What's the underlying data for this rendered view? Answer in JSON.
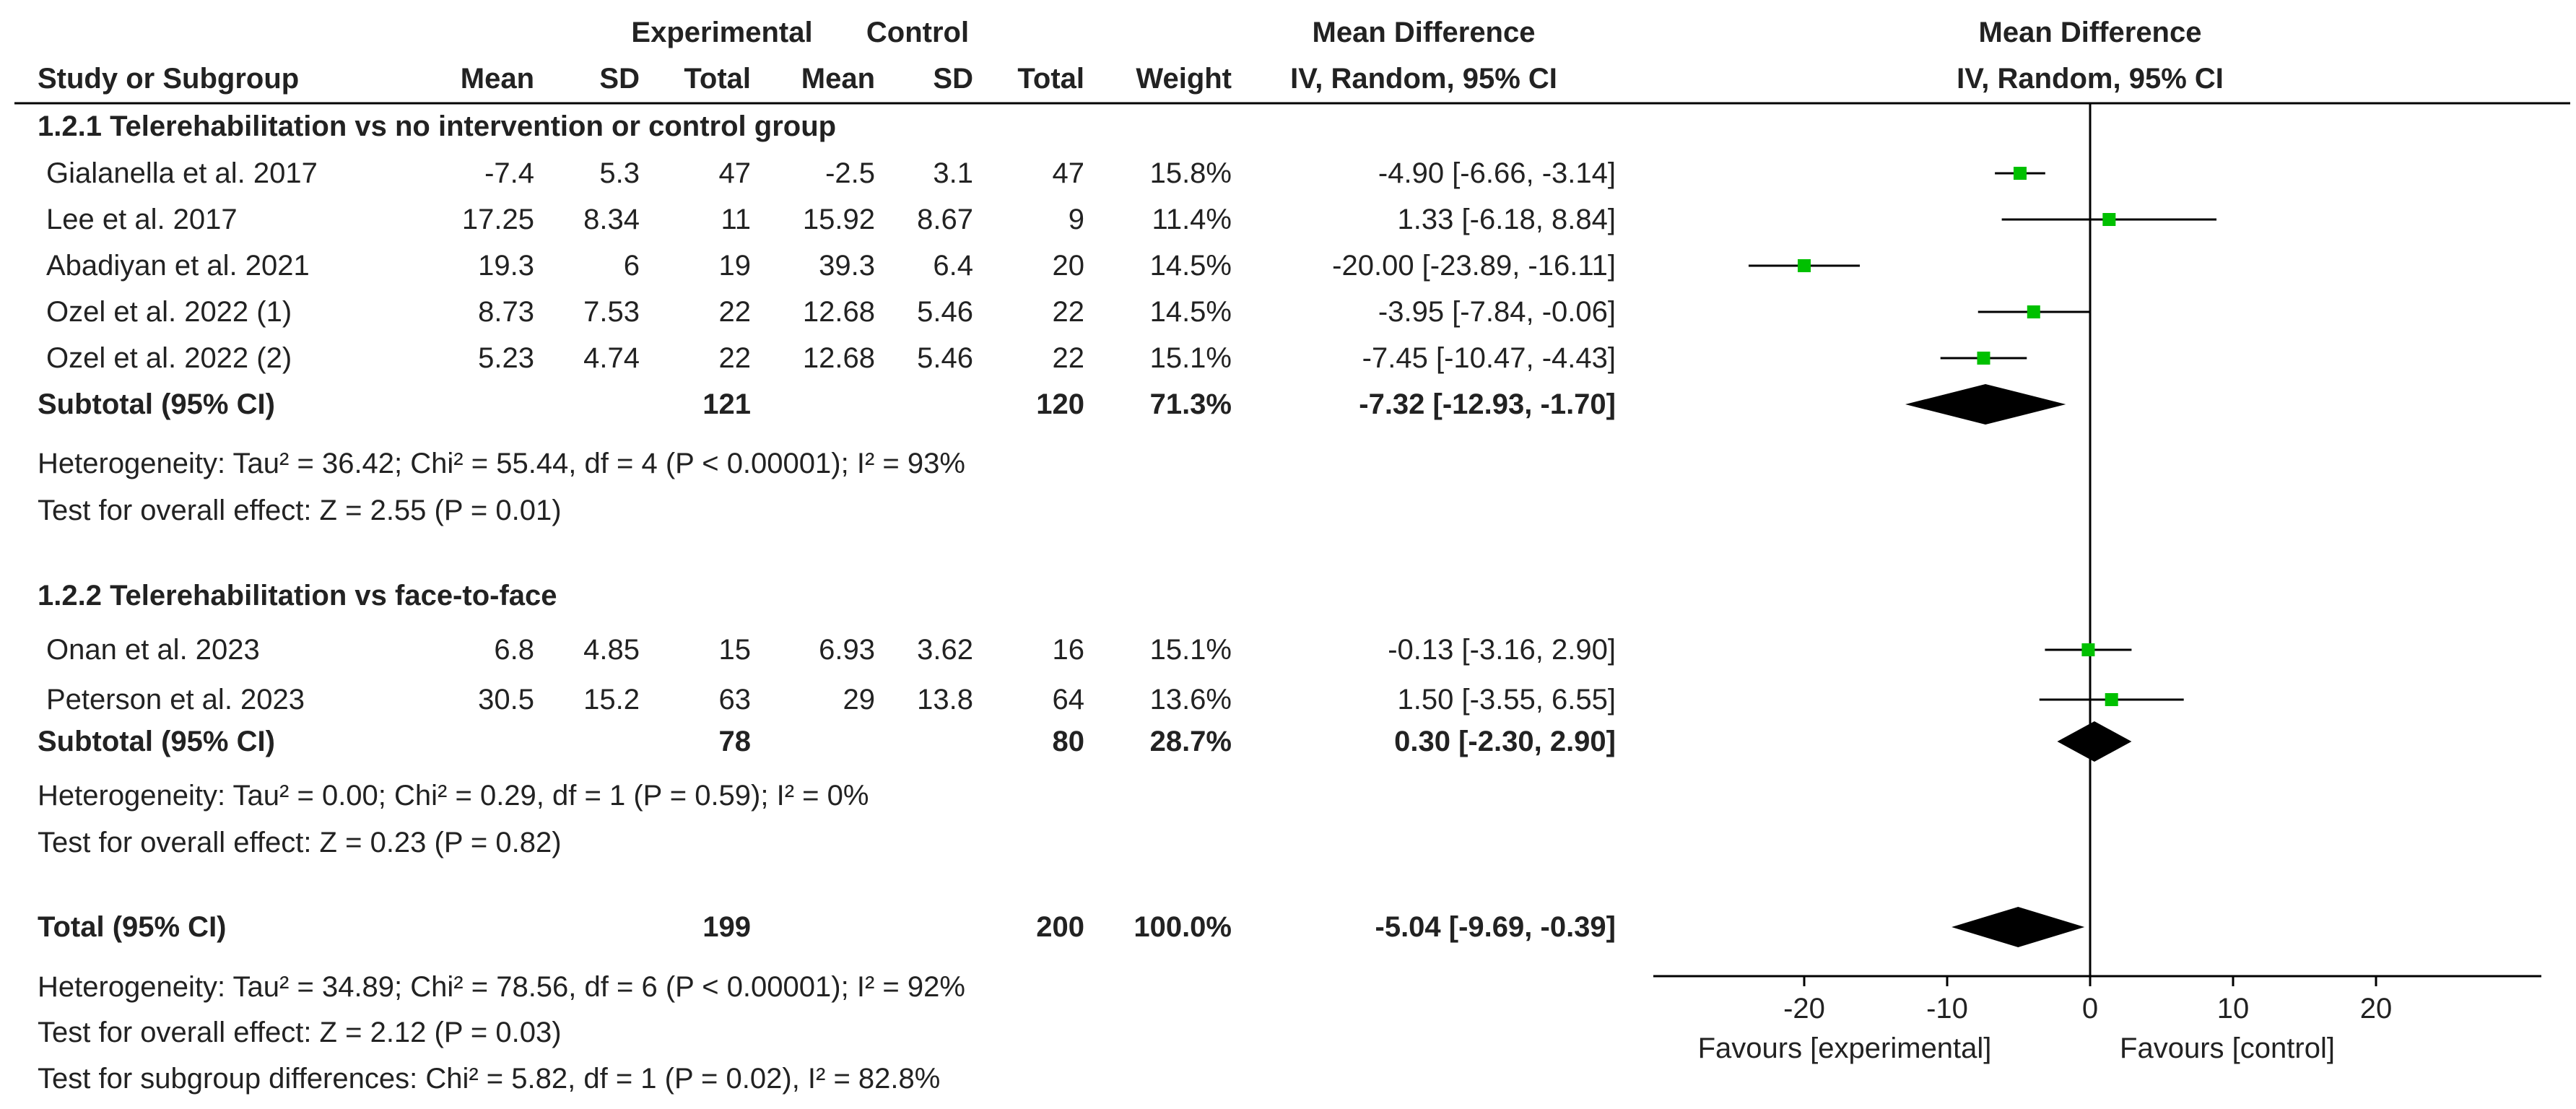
{
  "header": {
    "experimental": "Experimental",
    "control": "Control",
    "md_top": "Mean Difference",
    "md_sub": "IV, Random, 95% CI",
    "plot_top": "Mean Difference",
    "plot_sub": "IV, Random, 95% CI",
    "study": "Study or Subgroup",
    "mean": "Mean",
    "sd": "SD",
    "total": "Total",
    "weight": "Weight"
  },
  "subgroups": [
    {
      "title": "1.2.1 Telerehabilitation vs no intervention or control group",
      "studies": [
        {
          "name": "Gialanella et al. 2017",
          "e_mean": "-7.4",
          "e_sd": "5.3",
          "e_total": "47",
          "c_mean": "-2.5",
          "c_sd": "3.1",
          "c_total": "47",
          "weight": "15.8%",
          "ci_text": "-4.90 [-6.66, -3.14]",
          "md": -4.9,
          "lo": -6.66,
          "hi": -3.14
        },
        {
          "name": "Lee et al. 2017",
          "e_mean": "17.25",
          "e_sd": "8.34",
          "e_total": "11",
          "c_mean": "15.92",
          "c_sd": "8.67",
          "c_total": "9",
          "weight": "11.4%",
          "ci_text": "1.33 [-6.18, 8.84]",
          "md": 1.33,
          "lo": -6.18,
          "hi": 8.84
        },
        {
          "name": "Abadiyan et al. 2021",
          "e_mean": "19.3",
          "e_sd": "6",
          "e_total": "19",
          "c_mean": "39.3",
          "c_sd": "6.4",
          "c_total": "20",
          "weight": "14.5%",
          "ci_text": "-20.00 [-23.89, -16.11]",
          "md": -20.0,
          "lo": -23.89,
          "hi": -16.11
        },
        {
          "name": "Ozel et al. 2022 (1)",
          "e_mean": "8.73",
          "e_sd": "7.53",
          "e_total": "22",
          "c_mean": "12.68",
          "c_sd": "5.46",
          "c_total": "22",
          "weight": "14.5%",
          "ci_text": "-3.95 [-7.84, -0.06]",
          "md": -3.95,
          "lo": -7.84,
          "hi": -0.06
        },
        {
          "name": "Ozel et al. 2022 (2)",
          "e_mean": "5.23",
          "e_sd": "4.74",
          "e_total": "22",
          "c_mean": "12.68",
          "c_sd": "5.46",
          "c_total": "22",
          "weight": "15.1%",
          "ci_text": "-7.45 [-10.47, -4.43]",
          "md": -7.45,
          "lo": -10.47,
          "hi": -4.43
        }
      ],
      "subtotal": {
        "label": "Subtotal (95% CI)",
        "e_total": "121",
        "c_total": "120",
        "weight": "71.3%",
        "ci_text": "-7.32 [-12.93, -1.70]",
        "md": -7.32,
        "lo": -12.93,
        "hi": -1.7
      },
      "heterogeneity": "Heterogeneity: Tau² = 36.42; Chi² = 55.44, df = 4 (P < 0.00001); I² = 93%",
      "overall": "Test for overall effect: Z = 2.55 (P = 0.01)"
    },
    {
      "title": "1.2.2 Telerehabilitation vs face-to-face",
      "studies": [
        {
          "name": "Onan et al. 2023",
          "e_mean": "6.8",
          "e_sd": "4.85",
          "e_total": "15",
          "c_mean": "6.93",
          "c_sd": "3.62",
          "c_total": "16",
          "weight": "15.1%",
          "ci_text": "-0.13 [-3.16, 2.90]",
          "md": -0.13,
          "lo": -3.16,
          "hi": 2.9
        },
        {
          "name": "Peterson et al. 2023",
          "e_mean": "30.5",
          "e_sd": "15.2",
          "e_total": "63",
          "c_mean": "29",
          "c_sd": "13.8",
          "c_total": "64",
          "weight": "13.6%",
          "ci_text": "1.50 [-3.55, 6.55]",
          "md": 1.5,
          "lo": -3.55,
          "hi": 6.55
        }
      ],
      "subtotal": {
        "label": "Subtotal (95% CI)",
        "e_total": "78",
        "c_total": "80",
        "weight": "28.7%",
        "ci_text": "0.30 [-2.30, 2.90]",
        "md": 0.3,
        "lo": -2.3,
        "hi": 2.9
      },
      "heterogeneity": "Heterogeneity: Tau² = 0.00; Chi² = 0.29, df = 1 (P = 0.59); I² = 0%",
      "overall": "Test for overall effect: Z = 0.23 (P = 0.82)"
    }
  ],
  "total": {
    "label": "Total (95% CI)",
    "e_total": "199",
    "c_total": "200",
    "weight": "100.0%",
    "ci_text": "-5.04 [-9.69, -0.39]",
    "md": -5.04,
    "lo": -9.69,
    "hi": -0.39,
    "heterogeneity": "Heterogeneity: Tau² = 34.89; Chi² = 78.56, df = 6 (P < 0.00001); I² = 92%",
    "overall": "Test for overall effect: Z = 2.12 (P = 0.03)",
    "subgroup_diff": "Test for subgroup differences: Chi² = 5.82, df = 1 (P = 0.02), I² = 82.8%"
  },
  "axis": {
    "ticks": [
      -20,
      -10,
      0,
      10,
      20
    ],
    "tick_labels": [
      "-20",
      "-10",
      "0",
      "10",
      "20"
    ],
    "favours_left": "Favours [experimental]",
    "favours_right": "Favours [control]"
  },
  "colors": {
    "point": "#00c000",
    "diamond": "#000000",
    "text": "#222222",
    "line": "#000000"
  },
  "chart_data": {
    "type": "forest",
    "title": "Mean Difference IV, Random, 95% CI",
    "xlabel": "Favours [experimental] / Favours [control]",
    "xlim": [
      -30,
      30
    ],
    "studies": [
      {
        "name": "Gialanella et al. 2017",
        "md": -4.9,
        "lo": -6.66,
        "hi": -3.14,
        "weight": 15.8
      },
      {
        "name": "Lee et al. 2017",
        "md": 1.33,
        "lo": -6.18,
        "hi": 8.84,
        "weight": 11.4
      },
      {
        "name": "Abadiyan et al. 2021",
        "md": -20.0,
        "lo": -23.89,
        "hi": -16.11,
        "weight": 14.5
      },
      {
        "name": "Ozel et al. 2022 (1)",
        "md": -3.95,
        "lo": -7.84,
        "hi": -0.06,
        "weight": 14.5
      },
      {
        "name": "Ozel et al. 2022 (2)",
        "md": -7.45,
        "lo": -10.47,
        "hi": -4.43,
        "weight": 15.1
      },
      {
        "name": "Onan et al. 2023",
        "md": -0.13,
        "lo": -3.16,
        "hi": 2.9,
        "weight": 15.1
      },
      {
        "name": "Peterson et al. 2023",
        "md": 1.5,
        "lo": -3.55,
        "hi": 6.55,
        "weight": 13.6
      }
    ],
    "subtotals": [
      {
        "name": "Subtotal 1.2.1",
        "md": -7.32,
        "lo": -12.93,
        "hi": -1.7
      },
      {
        "name": "Subtotal 1.2.2",
        "md": 0.3,
        "lo": -2.3,
        "hi": 2.9
      }
    ],
    "overall": {
      "md": -5.04,
      "lo": -9.69,
      "hi": -0.39
    }
  }
}
